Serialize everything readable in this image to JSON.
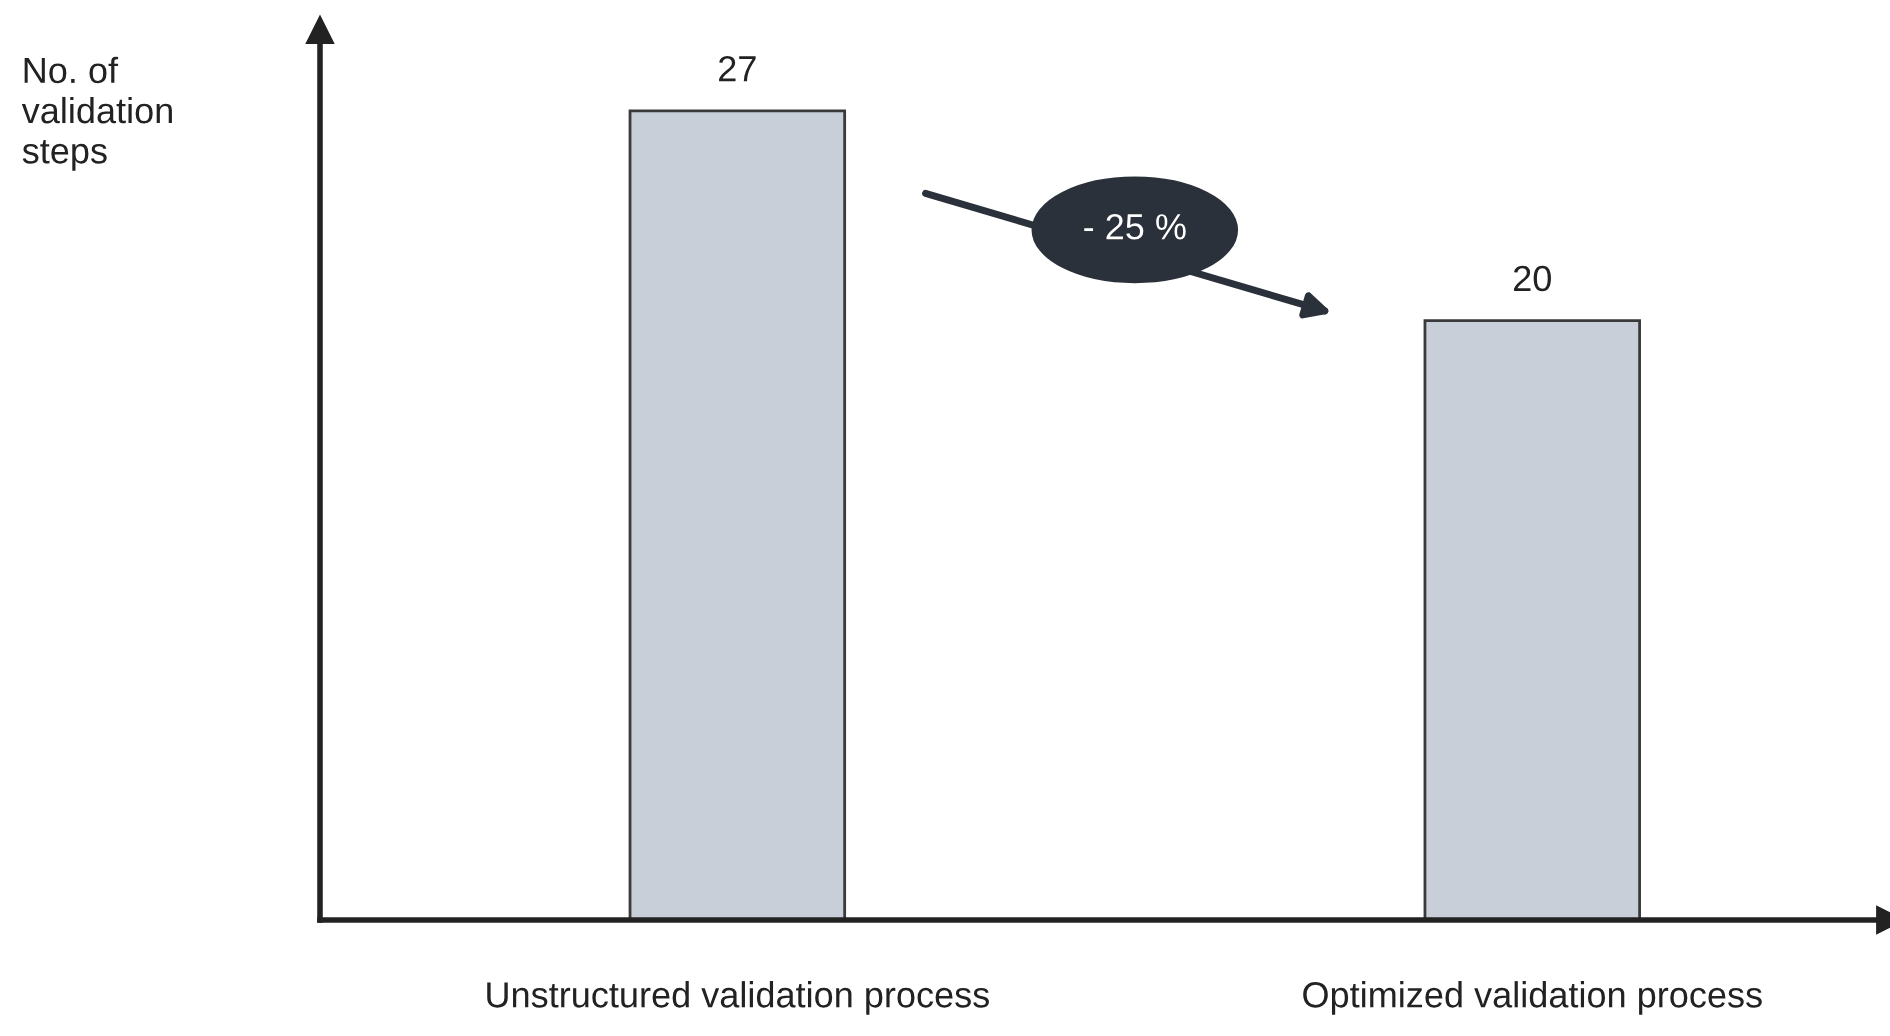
{
  "chart_data": {
    "type": "bar",
    "ylabel": "No. of\nvalidation\nsteps",
    "categories": [
      "Unstructured validation process",
      "Optimized validation process"
    ],
    "values": [
      27,
      20
    ],
    "color": "#c8cfd8",
    "data_labels": true,
    "annotations": [
      "- 25 %"
    ],
    "grid": false,
    "legend": false
  }
}
